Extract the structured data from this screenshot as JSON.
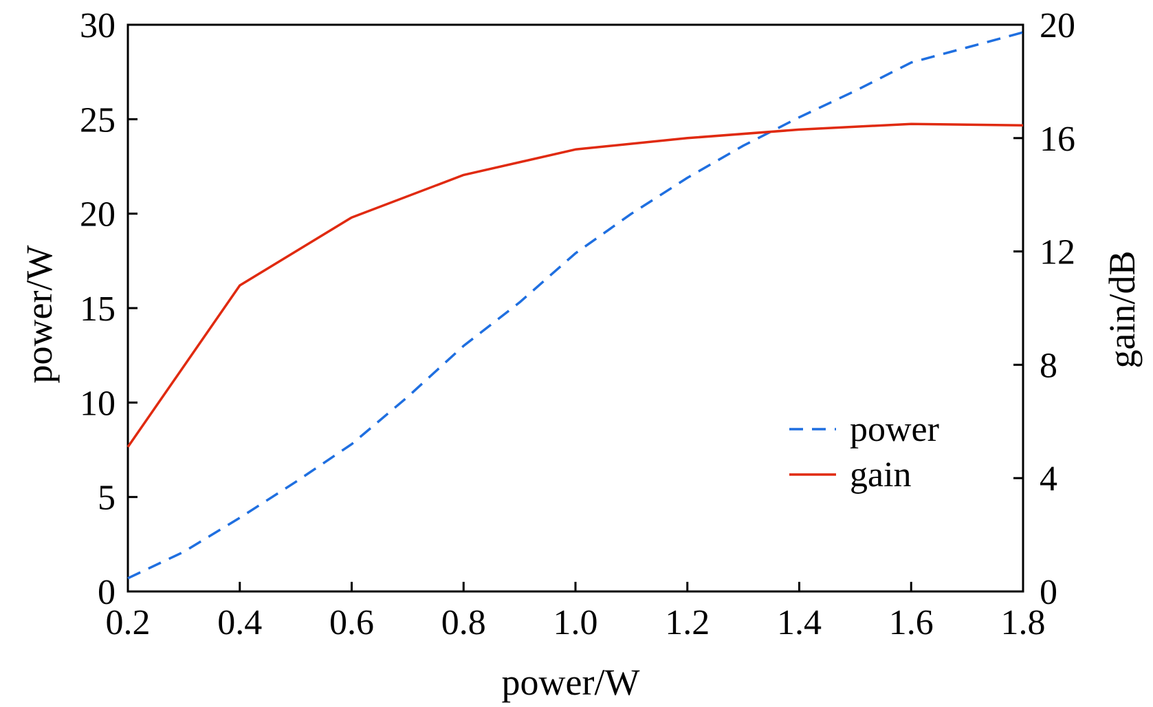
{
  "chart_data": {
    "type": "line",
    "title": "",
    "xlabel": "power/W",
    "ylabel_left": "power/W",
    "ylabel_right": "gain/dB",
    "xlim": [
      0.2,
      1.8
    ],
    "ylim_left": [
      0,
      30
    ],
    "ylim_right": [
      0,
      20
    ],
    "x_ticks": [
      "0.2",
      "0.4",
      "0.6",
      "0.8",
      "1.0",
      "1.2",
      "1.4",
      "1.6",
      "1.8"
    ],
    "y_left_ticks": [
      "0",
      "5",
      "10",
      "15",
      "20",
      "25",
      "30"
    ],
    "y_right_ticks": [
      "0",
      "4",
      "8",
      "12",
      "16",
      "20"
    ],
    "grid": false,
    "legend_position": "lower-right",
    "series": [
      {
        "name": "power",
        "axis": "left",
        "style": "dashed",
        "color": "#1f6fe0",
        "x": [
          0.2,
          0.3,
          0.4,
          0.5,
          0.6,
          0.7,
          0.8,
          0.9,
          1.0,
          1.1,
          1.2,
          1.3,
          1.4,
          1.5,
          1.6,
          1.7,
          1.8
        ],
        "y": [
          0.7,
          2.1,
          3.9,
          5.8,
          7.8,
          10.3,
          13.0,
          15.3,
          17.9,
          20.0,
          21.9,
          23.6,
          25.1,
          26.5,
          28.0,
          28.8,
          29.6
        ]
      },
      {
        "name": "gain",
        "axis": "right",
        "style": "solid",
        "color": "#e02a10",
        "x": [
          0.2,
          0.4,
          0.6,
          0.8,
          1.0,
          1.2,
          1.4,
          1.6,
          1.8
        ],
        "y": [
          5.1,
          10.8,
          13.2,
          14.7,
          15.6,
          16.0,
          16.3,
          16.5,
          16.45
        ]
      }
    ]
  }
}
